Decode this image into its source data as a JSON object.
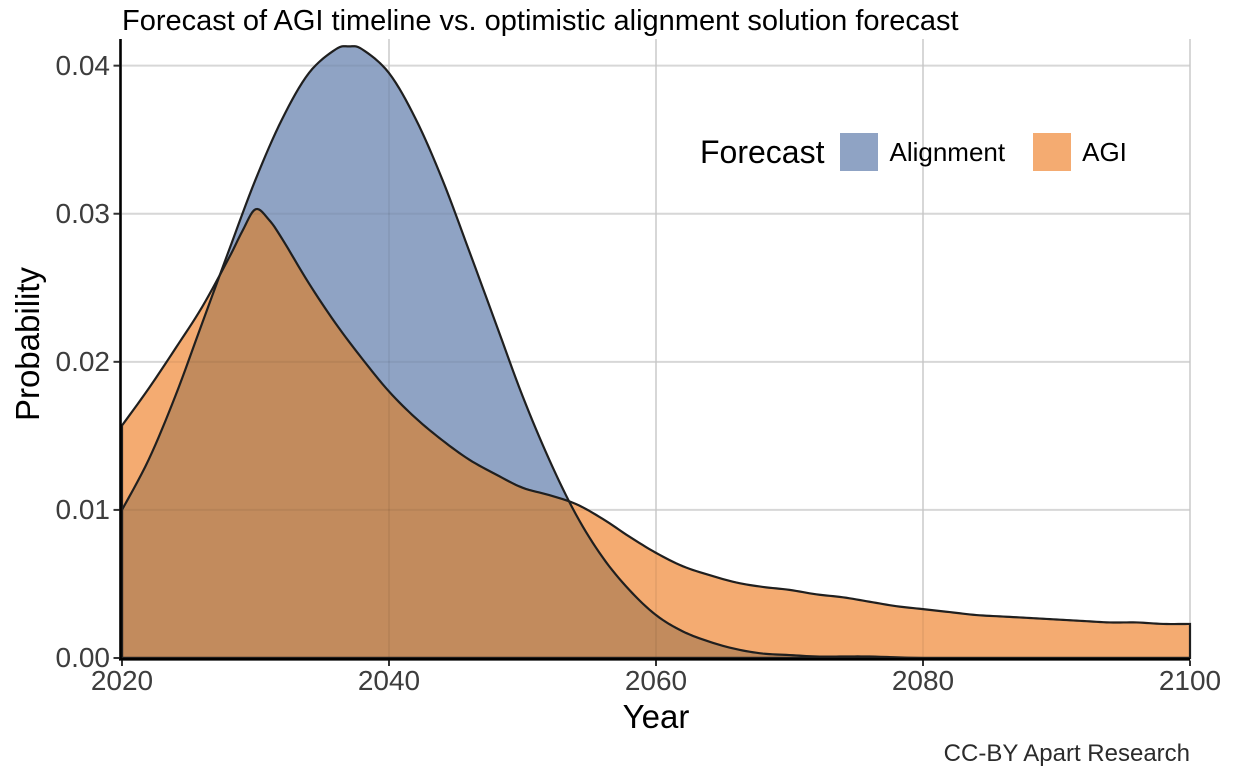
{
  "title": "Forecast of AGI timeline vs. optimistic alignment solution forecast",
  "attribution": "CC-BY Apart Research",
  "axes": {
    "x": {
      "label": "Year",
      "ticks": [
        "2020",
        "2040",
        "2060",
        "2080",
        "2100"
      ],
      "tick_values": [
        2020,
        2040,
        2060,
        2080,
        2100
      ]
    },
    "y": {
      "label": "Probability",
      "ticks": [
        "0.00",
        "0.01",
        "0.02",
        "0.03",
        "0.04"
      ],
      "tick_values": [
        0,
        0.01,
        0.02,
        0.03,
        0.04
      ]
    }
  },
  "legend": {
    "title": "Forecast",
    "items": [
      {
        "label": "Alignment",
        "color": "#8FA3C4"
      },
      {
        "label": "AGI",
        "color": "#F4AB71"
      }
    ]
  },
  "colors": {
    "alignment_fill": "#8FA3C4",
    "agi_fill": "#F4AB71",
    "overlap_fill": "#C28B5D",
    "curve_stroke": "#1f1f1f",
    "gridline": "#e4e4e4",
    "axis_line": "#000000",
    "tick_mark": "#333333",
    "tick_text": "#3d3d3d"
  },
  "chart_data": {
    "type": "area",
    "title": "Forecast of AGI timeline vs. optimistic alignment solution forecast",
    "xlabel": "Year",
    "ylabel": "Probability",
    "xlim": [
      2020,
      2100
    ],
    "ylim": [
      0,
      0.0418
    ],
    "grid": true,
    "legend_position": "inside-top-right",
    "series": [
      {
        "name": "Alignment",
        "fill": "#8FA3C4",
        "peak": {
          "year": 2037,
          "probability": 0.0413
        },
        "points": [
          [
            2020,
            0.01
          ],
          [
            2022,
            0.0134
          ],
          [
            2024,
            0.0177
          ],
          [
            2026,
            0.0226
          ],
          [
            2028,
            0.0275
          ],
          [
            2030,
            0.0323
          ],
          [
            2032,
            0.0364
          ],
          [
            2034,
            0.0395
          ],
          [
            2036,
            0.0411
          ],
          [
            2037,
            0.0413
          ],
          [
            2038,
            0.0411
          ],
          [
            2040,
            0.0395
          ],
          [
            2042,
            0.0364
          ],
          [
            2044,
            0.0323
          ],
          [
            2046,
            0.0275
          ],
          [
            2048,
            0.0226
          ],
          [
            2050,
            0.0177
          ],
          [
            2052,
            0.0134
          ],
          [
            2054,
            0.0097
          ],
          [
            2056,
            0.0068
          ],
          [
            2058,
            0.0046
          ],
          [
            2060,
            0.0029
          ],
          [
            2062,
            0.0018
          ],
          [
            2064,
            0.0011
          ],
          [
            2066,
            0.0006
          ],
          [
            2068,
            0.0003
          ],
          [
            2070,
            0.0002
          ],
          [
            2072,
            0.0001
          ],
          [
            2074,
            0.0001
          ],
          [
            2076,
            0.0001
          ],
          [
            2080,
            0.0
          ],
          [
            2085,
            0.0
          ],
          [
            2090,
            0.0
          ],
          [
            2095,
            0.0
          ],
          [
            2100,
            0.0
          ]
        ]
      },
      {
        "name": "AGI",
        "fill": "#F4AB71",
        "peak": {
          "year": 2030,
          "probability": 0.0303
        },
        "points": [
          [
            2020,
            0.0157
          ],
          [
            2022,
            0.0182
          ],
          [
            2024,
            0.0209
          ],
          [
            2026,
            0.0237
          ],
          [
            2028,
            0.027
          ],
          [
            2029,
            0.0288
          ],
          [
            2030,
            0.0303
          ],
          [
            2031,
            0.0296
          ],
          [
            2032,
            0.0283
          ],
          [
            2034,
            0.0253
          ],
          [
            2036,
            0.0226
          ],
          [
            2038,
            0.0202
          ],
          [
            2040,
            0.018
          ],
          [
            2042,
            0.0162
          ],
          [
            2044,
            0.0147
          ],
          [
            2046,
            0.0134
          ],
          [
            2048,
            0.0124
          ],
          [
            2050,
            0.0115
          ],
          [
            2052,
            0.011
          ],
          [
            2054,
            0.0104
          ],
          [
            2056,
            0.0094
          ],
          [
            2058,
            0.0082
          ],
          [
            2060,
            0.0071
          ],
          [
            2062,
            0.0062
          ],
          [
            2064,
            0.0056
          ],
          [
            2066,
            0.0051
          ],
          [
            2068,
            0.0048
          ],
          [
            2070,
            0.0046
          ],
          [
            2072,
            0.0043
          ],
          [
            2074,
            0.0041
          ],
          [
            2076,
            0.0038
          ],
          [
            2078,
            0.0035
          ],
          [
            2080,
            0.0033
          ],
          [
            2082,
            0.0031
          ],
          [
            2084,
            0.0029
          ],
          [
            2086,
            0.0028
          ],
          [
            2088,
            0.0027
          ],
          [
            2090,
            0.0026
          ],
          [
            2092,
            0.0025
          ],
          [
            2094,
            0.0024
          ],
          [
            2096,
            0.0024
          ],
          [
            2098,
            0.0023
          ],
          [
            2100,
            0.0023
          ]
        ]
      }
    ],
    "overlap_fill": "#C28B5D",
    "crossing_points": [
      {
        "year": 2029,
        "probability": 0.03
      },
      {
        "year": 2053,
        "probability": 0.0107
      }
    ]
  }
}
